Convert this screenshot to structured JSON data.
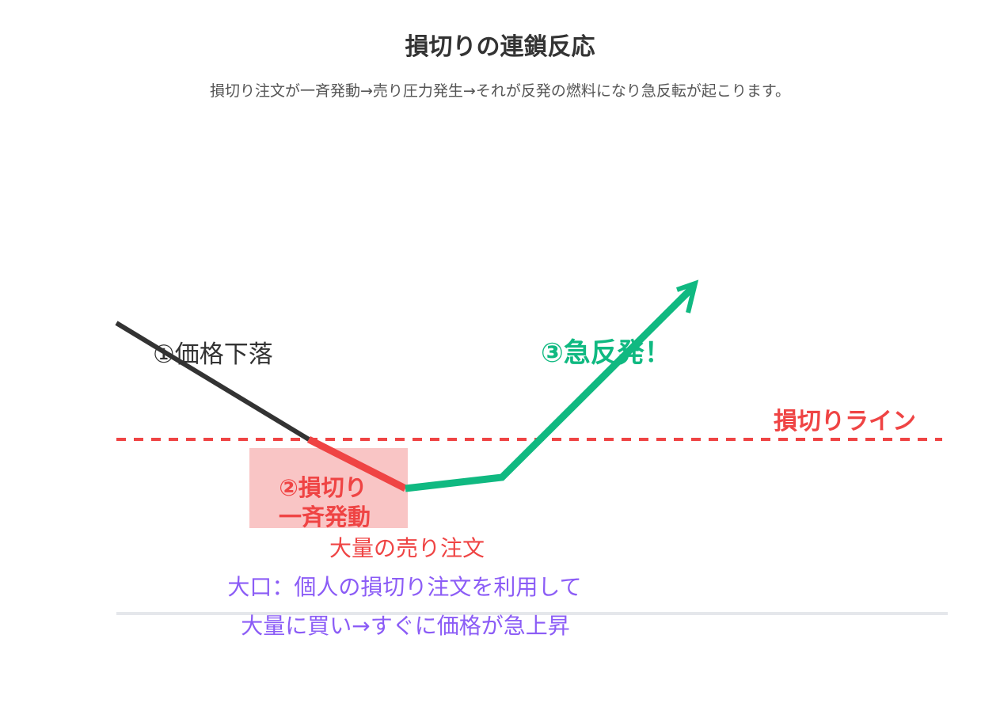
{
  "title": "損切りの連鎖反応",
  "subtitle": "損切り注文が一斉発動→売り圧力発生→それが反発の燃料になり急反転が起こります。",
  "labels": {
    "step1": "①価格下落",
    "step2_line1": "②損切り",
    "step2_line2": "一斉発動",
    "step3": "③急反発！",
    "stop_line": "損切りライン",
    "sell_orders": "大量の売り注文",
    "big_player_line1": "大口：個人の損切り注文を利用して",
    "big_player_line2": "大量に買い→すぐに価格が急上昇"
  },
  "colors": {
    "decline": "#333333",
    "stop": "#ef4444",
    "stop_zone": "#f9c5c5",
    "rebound": "#10b981",
    "big_player": "#8b5cf6",
    "baseline": "#e5e7eb"
  }
}
